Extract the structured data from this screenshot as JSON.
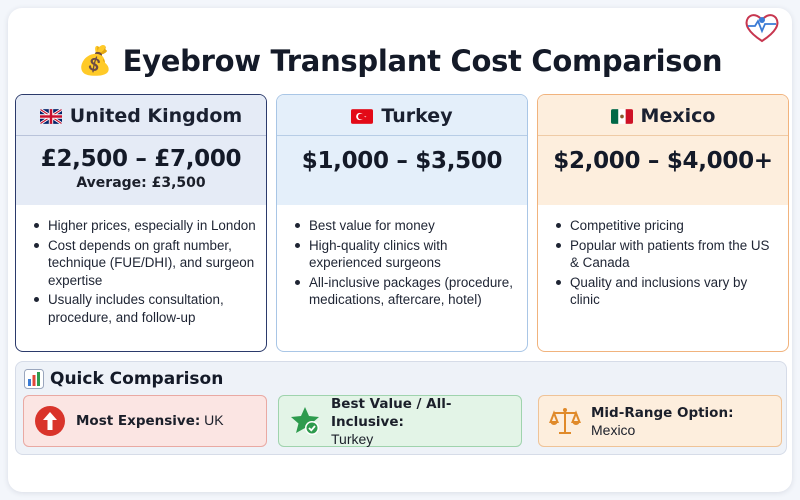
{
  "title": {
    "icon": "money-bag-icon",
    "text": "Eyebrow Transplant Cost Comparison"
  },
  "countries": [
    {
      "name": "United Kingdom",
      "flag": "uk-flag-icon",
      "price": "£2,500 – £7,000",
      "average": "Average: £3,500",
      "bullets": [
        "Higher prices, especially in London",
        "Cost depends on graft number, technique (FUE/DHI), and surgeon expertise",
        "Usually includes consultation, procedure, and follow-up"
      ]
    },
    {
      "name": "Turkey",
      "flag": "turkey-flag-icon",
      "price": "$1,000 – $3,500",
      "bullets": [
        "Best value for money",
        "High-quality clinics with experienced surgeons",
        "All-inclusive packages (procedure, medications, aftercare, hotel)"
      ]
    },
    {
      "name": "Mexico",
      "flag": "mexico-flag-icon",
      "price": "$2,000 – $4,000+",
      "bullets": [
        "Competitive pricing",
        "Popular with patients from the US & Canada",
        "Quality and inclusions vary by clinic"
      ]
    }
  ],
  "quick_comparison": {
    "icon": "bar-chart-icon",
    "title": "Quick Comparison",
    "items": [
      {
        "icon": "arrow-up-icon",
        "label": "Most Expensive:",
        "value": "UK",
        "color": "#d9342b"
      },
      {
        "icon": "star-check-icon",
        "label": "Best Value / All-Inclusive:",
        "value": "Turkey",
        "color": "#2e9b4e"
      },
      {
        "icon": "balance-scale-icon",
        "label": "Mid-Range Option:",
        "value": "Mexico",
        "color": "#e08a2a"
      }
    ]
  },
  "colors": {
    "uk_border": "#2b3a6b",
    "turkey_border": "#a9c6e6",
    "mexico_border": "#f1b37d"
  }
}
